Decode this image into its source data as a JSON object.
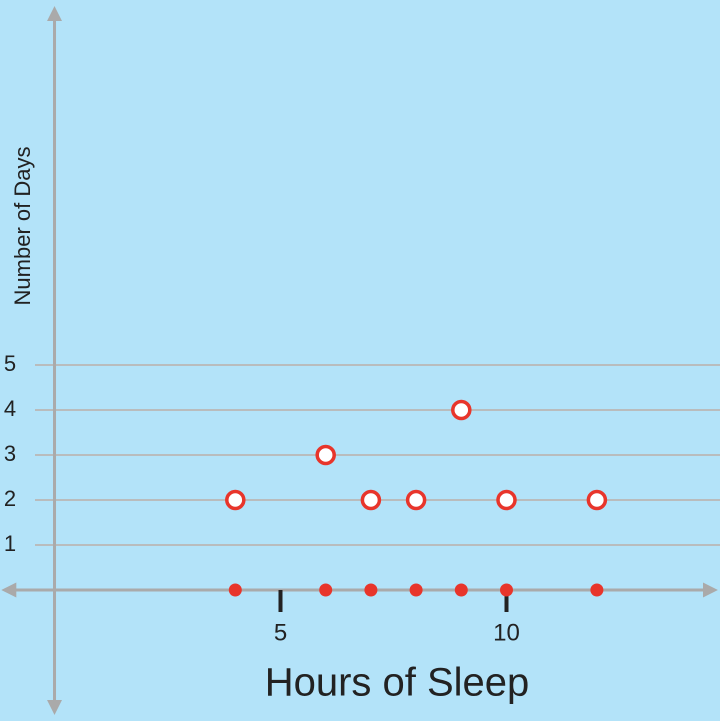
{
  "chart_data": {
    "type": "scatter",
    "x_label": "Hours of Sleep",
    "y_label": "Number of Days",
    "x": [
      4,
      6,
      7,
      8,
      9,
      10,
      12
    ],
    "values": [
      2,
      3,
      2,
      2,
      4,
      2,
      2
    ],
    "color": "#e8352b",
    "xlim": [
      -1.1,
      14.6
    ],
    "ylim": [
      -2.7,
      12.9
    ],
    "xticks": [
      5,
      10
    ],
    "yticks": [
      1,
      2,
      3,
      4,
      5
    ],
    "grid": true
  }
}
